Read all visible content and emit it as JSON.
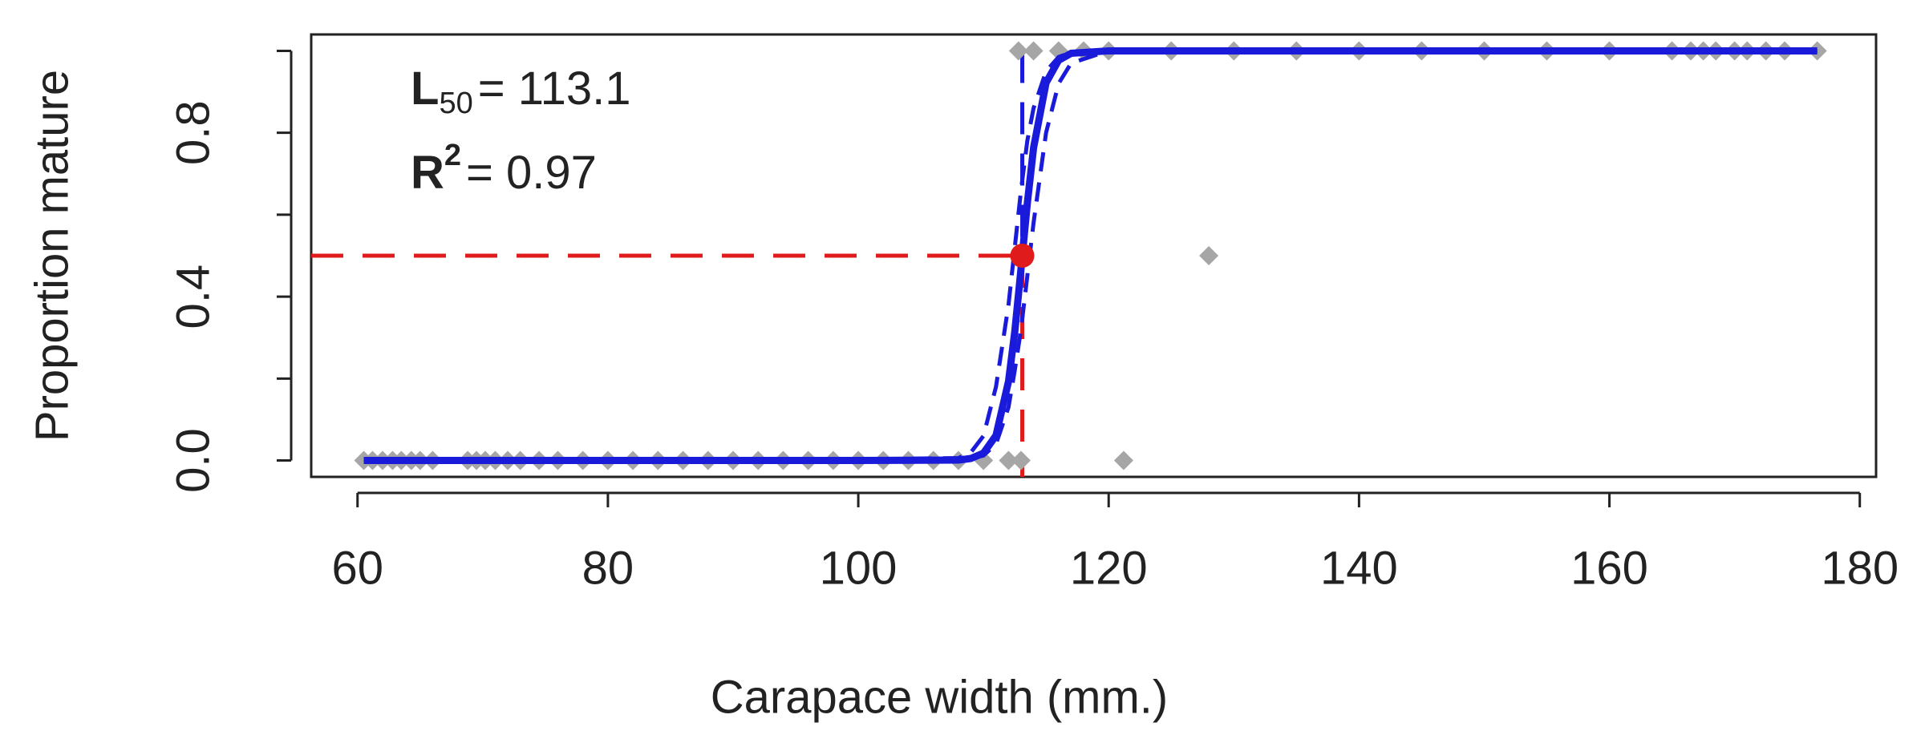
{
  "chart_data": {
    "type": "scatter",
    "xlabel": "Carapace width (mm.)",
    "ylabel": "Proportion mature",
    "xlim": [
      56.3,
      181.3
    ],
    "ylim": [
      -0.04,
      1.04
    ],
    "xticks": [
      60,
      80,
      100,
      120,
      140,
      160,
      180
    ],
    "yticks": [
      {
        "value": 0,
        "label": "0.0"
      },
      {
        "value": 0.2,
        "label": null
      },
      {
        "value": 0.4,
        "label": "0.4"
      },
      {
        "value": 0.6,
        "label": null
      },
      {
        "value": 0.8,
        "label": "0.8"
      },
      {
        "value": 1,
        "label": null
      }
    ],
    "annotations": [
      {
        "main": "L",
        "sub": "50",
        "text": "= 113.1"
      },
      {
        "main": "R",
        "sup": "2",
        "text": "= 0.97"
      }
    ],
    "observed": {
      "color": "#a6a6a6",
      "x": [
        60.5,
        61.2,
        62,
        62.8,
        63.5,
        64.3,
        65,
        66,
        68.8,
        69.5,
        70.2,
        71,
        72,
        73,
        74.5,
        76,
        78,
        80,
        82,
        84,
        86,
        88,
        90,
        92,
        94,
        96,
        98,
        100,
        102,
        104,
        106,
        108,
        110,
        112,
        113,
        121.2,
        128,
        112.8,
        114,
        116,
        118,
        120,
        125,
        130,
        135,
        140,
        145,
        150,
        155,
        160,
        165,
        166.5,
        167.5,
        168.5,
        170,
        171,
        172.5,
        174,
        176.6
      ],
      "values": [
        0,
        0,
        0,
        0,
        0,
        0,
        0,
        0,
        0,
        0,
        0,
        0,
        0,
        0,
        0,
        0,
        0,
        0,
        0,
        0,
        0,
        0,
        0,
        0,
        0,
        0,
        0,
        0,
        0,
        0,
        0,
        0,
        0,
        0,
        0,
        0,
        0.5,
        1,
        1,
        1,
        1,
        1,
        1,
        1,
        1,
        1,
        1,
        1,
        1,
        1,
        1,
        1,
        1,
        1,
        1,
        1,
        1,
        1,
        1
      ]
    },
    "fit": {
      "color": "#1a1adb",
      "x": [
        60.5,
        100,
        108,
        109,
        110,
        111,
        112,
        112.5,
        113,
        113.5,
        114,
        115,
        116,
        117,
        120,
        176.6
      ],
      "values": [
        0,
        0,
        0.001,
        0.005,
        0.018,
        0.061,
        0.193,
        0.314,
        0.468,
        0.627,
        0.763,
        0.922,
        0.977,
        0.994,
        1,
        1
      ]
    },
    "ci_upper": {
      "color": "#1a1adb",
      "x": [
        60.5,
        100,
        108,
        109,
        110,
        111,
        112,
        112.5,
        113,
        113.5,
        114,
        115,
        116,
        117,
        120,
        176.6
      ],
      "values": [
        0,
        0.003,
        0.006,
        0.02,
        0.06,
        0.18,
        0.38,
        0.52,
        0.66,
        0.78,
        0.86,
        0.95,
        0.985,
        0.996,
        1,
        1
      ]
    },
    "ci_lower": {
      "color": "#1a1adb",
      "x": [
        60.5,
        100,
        108,
        109,
        110,
        111,
        112,
        112.5,
        113,
        113.5,
        114,
        115,
        116,
        117,
        120,
        176.6
      ],
      "values": [
        0,
        0,
        0.001,
        0.005,
        0.012,
        0.04,
        0.13,
        0.22,
        0.32,
        0.45,
        0.58,
        0.8,
        0.92,
        0.97,
        1,
        1
      ]
    },
    "l50": {
      "x": 113.1,
      "y": 0.5,
      "color": "#e01b1b",
      "upper_color": "#1a1adb"
    }
  }
}
